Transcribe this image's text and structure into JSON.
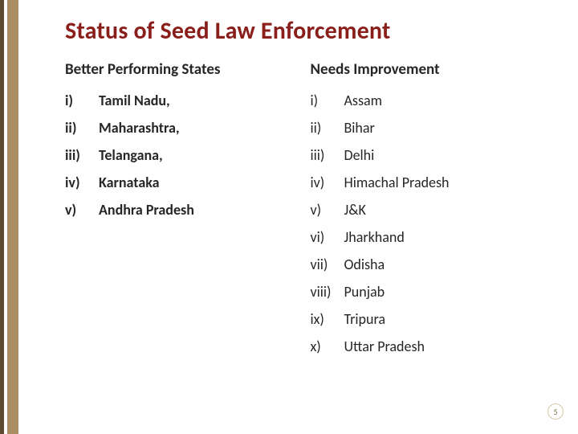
{
  "colors": {
    "title": "#8a1e1a",
    "text": "#262626",
    "leftbar_thin": "#5f4b2f",
    "leftbar_thick": "#a98e63",
    "pagenum_border": "#d6c9a8",
    "pagenum_text": "#7a6a45",
    "background": "#ffffff"
  },
  "title": "Status of Seed Law Enforcement",
  "page_number": "5",
  "left": {
    "header": "Better Performing States",
    "items": [
      {
        "marker": "i)",
        "label": "Tamil Nadu,"
      },
      {
        "marker": "ii)",
        "label": " Maharashtra,"
      },
      {
        "marker": "iii)",
        "label": "Telangana,"
      },
      {
        "marker": "iv)",
        "label": "Karnataka"
      },
      {
        "marker": "v)",
        "label": "Andhra Pradesh"
      }
    ]
  },
  "right": {
    "header": "Needs Improvement",
    "items": [
      {
        "marker": "i)",
        "label": "Assam"
      },
      {
        "marker": "ii)",
        "label": "Bihar"
      },
      {
        "marker": "iii)",
        "label": "Delhi"
      },
      {
        "marker": "iv)",
        "label": "Himachal Pradesh"
      },
      {
        "marker": "v)",
        "label": "J&K"
      },
      {
        "marker": "vi)",
        "label": "Jharkhand"
      },
      {
        "marker": "vii)",
        "label": "Odisha"
      },
      {
        "marker": "viii)",
        "label": "Punjab"
      },
      {
        "marker": "ix)",
        "label": "Tripura"
      },
      {
        "marker": "x)",
        "label": "Uttar Pradesh"
      }
    ]
  }
}
